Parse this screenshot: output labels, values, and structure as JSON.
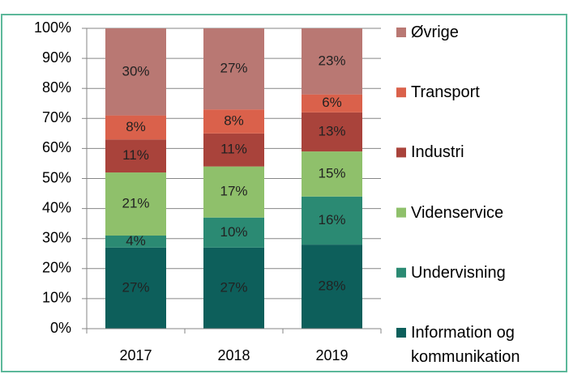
{
  "chart_data": {
    "type": "stacked_bar",
    "categories": [
      "2017",
      "2018",
      "2019"
    ],
    "series": [
      {
        "name": "Information og kommunikation",
        "color": "#0d5f5b",
        "values": [
          27,
          27,
          28
        ],
        "value_labels": [
          "27%",
          "27%",
          "28%"
        ]
      },
      {
        "name": "Undervisning",
        "color": "#2b8a73",
        "values": [
          4,
          10,
          16
        ],
        "value_labels": [
          "4%",
          "10%",
          "16%"
        ]
      },
      {
        "name": "Videnservice",
        "color": "#8fc06b",
        "values": [
          21,
          17,
          15
        ],
        "value_labels": [
          "21%",
          "17%",
          "15%"
        ]
      },
      {
        "name": "Industri",
        "color": "#a9433b",
        "values": [
          11,
          11,
          13
        ],
        "value_labels": [
          "11%",
          "11%",
          "13%"
        ]
      },
      {
        "name": "Transport",
        "color": "#da614b",
        "values": [
          8,
          8,
          6
        ],
        "value_labels": [
          "8%",
          "8%",
          "6%"
        ]
      },
      {
        "name": "Øvrige",
        "color": "#b97873",
        "values": [
          30,
          27,
          23
        ],
        "value_labels": [
          "30%",
          "27%",
          "23%"
        ]
      }
    ],
    "ylim": [
      0,
      100
    ],
    "yticks": [
      {
        "value": 0,
        "label": "0%"
      },
      {
        "value": 10,
        "label": "10%"
      },
      {
        "value": 20,
        "label": "20%"
      },
      {
        "value": 30,
        "label": "30%"
      },
      {
        "value": 40,
        "label": "40%"
      },
      {
        "value": 50,
        "label": "50%"
      },
      {
        "value": 60,
        "label": "60%"
      },
      {
        "value": 70,
        "label": "70%"
      },
      {
        "value": 80,
        "label": "80%"
      },
      {
        "value": 90,
        "label": "90%"
      },
      {
        "value": 100,
        "label": "100%"
      }
    ],
    "grid": true,
    "legend": "right"
  }
}
